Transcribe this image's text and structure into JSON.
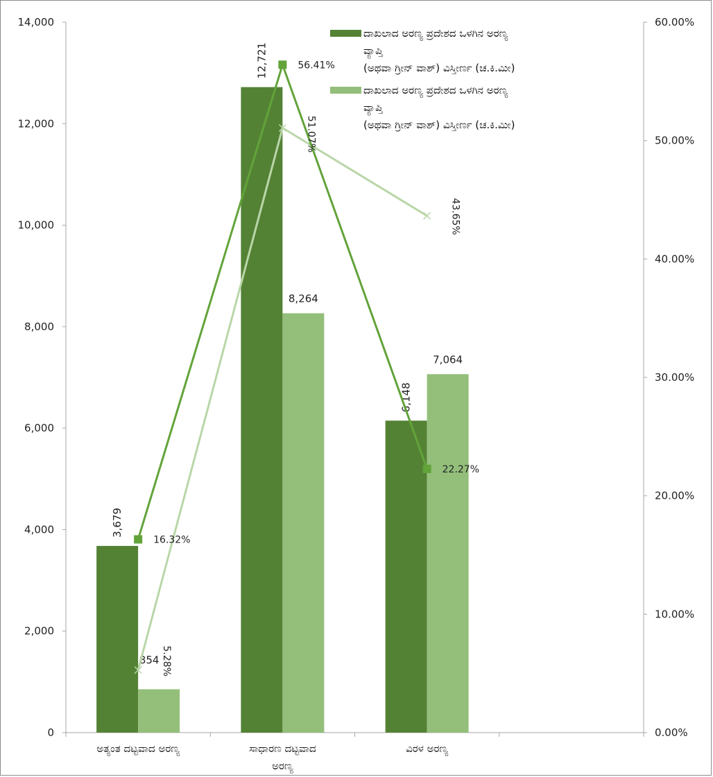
{
  "chart_data": {
    "type": "bar",
    "categories": [
      [
        "ಅತ್ಯಂತ ದಟ್ಟವಾದ ಅರಣ್ಯ"
      ],
      [
        "ಸಾಧಾರಣ ದಟ್ಟವಾದ",
        "ಅರಣ್ಯ"
      ],
      [
        "ವಿರಳ ಅರಣ್ಯ"
      ]
    ],
    "left_axis": {
      "ylim": [
        0,
        14000
      ],
      "ticks": [
        "0",
        "2,000",
        "4,000",
        "6,000",
        "8,000",
        "10,000",
        "12,000",
        "14,000"
      ]
    },
    "right_axis": {
      "ylim": [
        0,
        0.6
      ],
      "ticks": [
        "0.00%",
        "10.00%",
        "20.00%",
        "30.00%",
        "40.00%",
        "50.00%",
        "60.00%"
      ]
    },
    "bar_series": [
      {
        "legend": [
          "ದಾಖಲಾದ ಅರಣ್ಯ ಪ್ರದೇಶದ ಒಳಗಿನ ಅರಣ್ಯ",
          "ವ್ಯಾಪ್ತಿ",
          "(ಅಥವಾ ಗ್ರೀನ್ ವಾಶ್) ವಿಸ್ತೀರ್ಣ (ಚ.ಕಿ.ಮೀ)"
        ],
        "color": "#548235",
        "values": [
          3679,
          12721,
          6148
        ],
        "labels": [
          "3,679",
          "12,721",
          "6,148"
        ]
      },
      {
        "legend": [
          "ದಾಖಲಾದ ಅರಣ್ಯ ಪ್ರದೇಶದ ಒಳಗಿನ ಅರಣ್ಯ",
          "ವ್ಯಾಪ್ತಿ",
          "(ಅಥವಾ ಗ್ರೀನ್ ವಾಶ್) ವಿಸ್ತೀರ್ಣ (ಚ.ಕಿ.ಮೀ)"
        ],
        "color": "#93bf7a",
        "values": [
          854,
          8264,
          7064
        ],
        "labels": [
          "854",
          "8,264",
          "7,064"
        ]
      }
    ],
    "line_series": [
      {
        "color": "#62a33a",
        "marker": "square",
        "values": [
          0.1632,
          0.5641,
          0.2227
        ],
        "labels": [
          "16.32%",
          "56.41%",
          "22.27%"
        ]
      },
      {
        "color": "#b9d6a8",
        "marker": "x",
        "values": [
          0.0528,
          0.5107,
          0.4365
        ],
        "labels": [
          "5.28%",
          "51.07%",
          "43.65%"
        ]
      }
    ],
    "grid": false,
    "legend_position": "top-right"
  }
}
